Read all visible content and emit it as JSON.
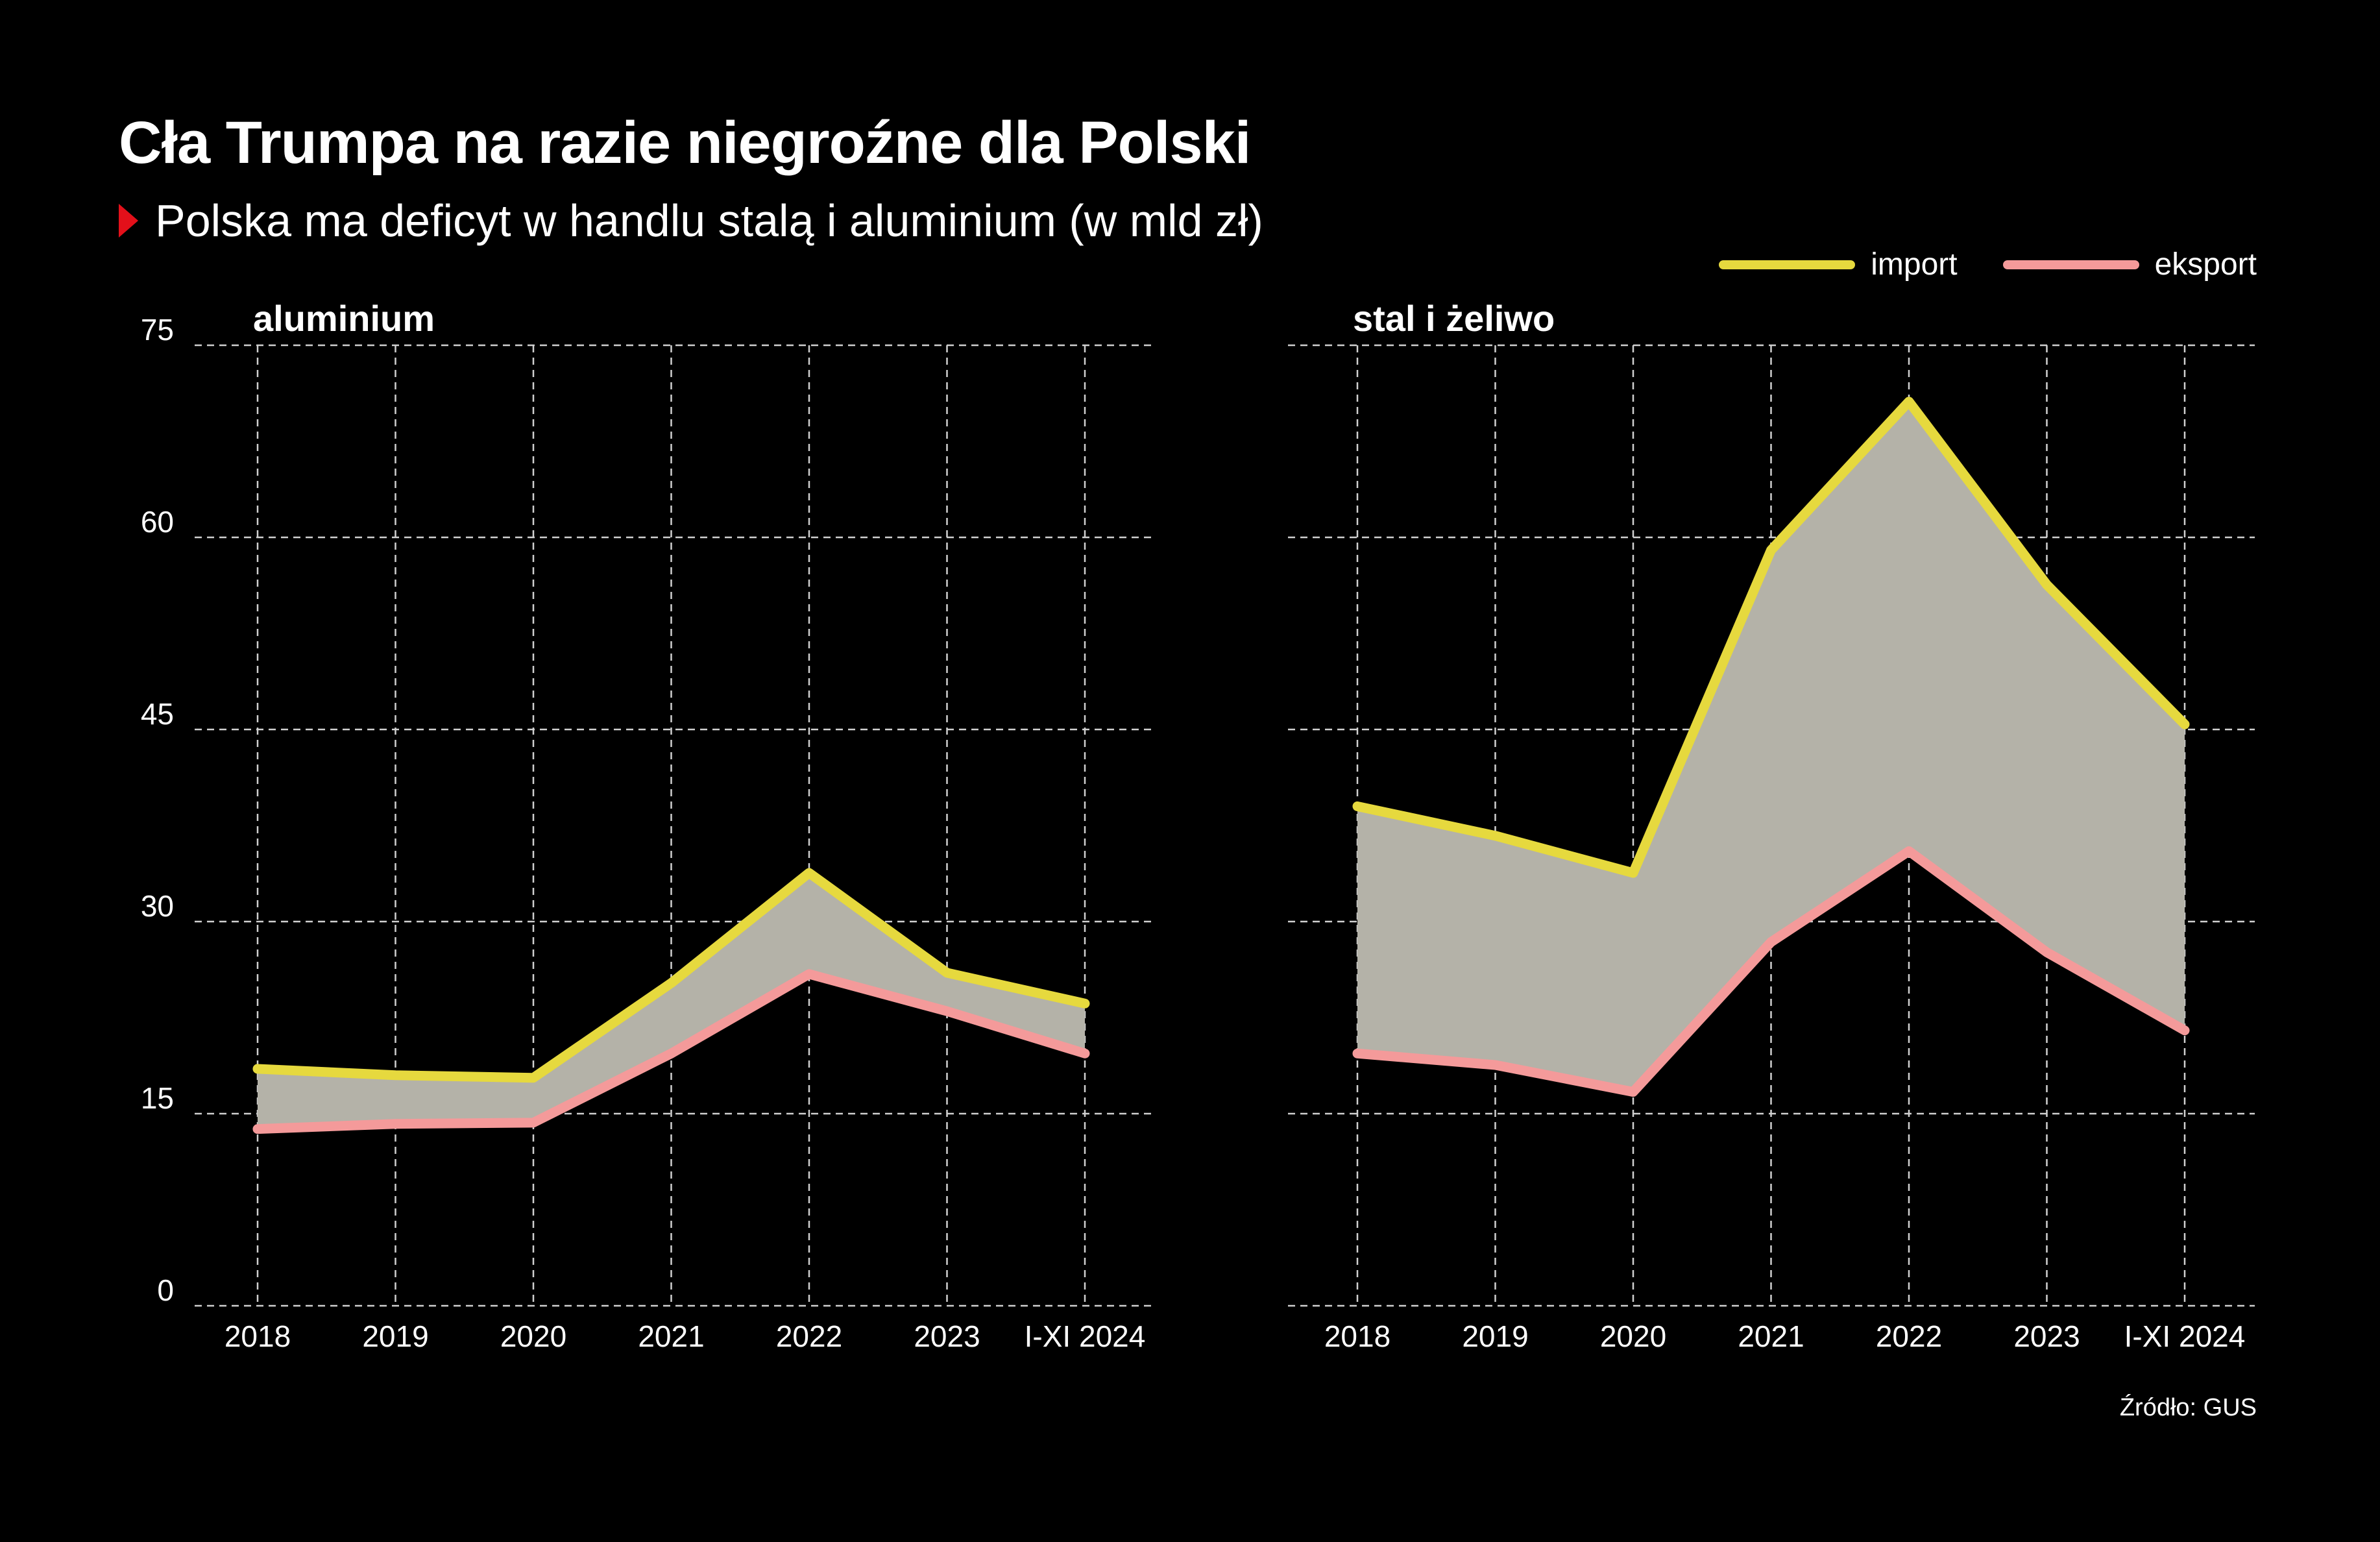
{
  "title": "Cła Trumpa na razie niegroźne dla Polski",
  "subtitle": "Polska ma deficyt w handlu stalą i aluminium (w mld zł)",
  "source": "Źródło: GUS",
  "legend": {
    "import": "import",
    "eksport": "eksport"
  },
  "colors": {
    "background": "#000000",
    "import": "#e6d93e",
    "eksport": "#f49a9a",
    "fill": "#b4b2a8",
    "grid": "#d0d0d0",
    "triangle": "#e3101a"
  },
  "chart_data": [
    {
      "type": "area",
      "title": "aluminium",
      "categories": [
        "2018",
        "2019",
        "2020",
        "2021",
        "2022",
        "2023",
        "I-XI 2024"
      ],
      "series": [
        {
          "name": "import",
          "values": [
            18.5,
            18,
            17.8,
            25.2,
            33.8,
            26,
            23.6
          ]
        },
        {
          "name": "eksport",
          "values": [
            13.8,
            14.2,
            14.3,
            19.7,
            25.9,
            23,
            19.7
          ]
        }
      ],
      "ylim": [
        0,
        75
      ],
      "yticks": [
        "0",
        "15",
        "30",
        "45",
        "60",
        "75"
      ],
      "grid": true
    },
    {
      "type": "area",
      "title": "stal i żeliwo",
      "categories": [
        "2018",
        "2019",
        "2020",
        "2021",
        "2022",
        "2023",
        "I-XI 2024"
      ],
      "series": [
        {
          "name": "import",
          "values": [
            39,
            36.7,
            33.8,
            59,
            70.6,
            56.3,
            45.4
          ]
        },
        {
          "name": "eksport",
          "values": [
            19.7,
            18.8,
            16.7,
            28.4,
            35.5,
            27.6,
            21.5
          ]
        }
      ],
      "ylim": [
        0,
        75
      ],
      "yticks": [],
      "grid": true
    }
  ]
}
